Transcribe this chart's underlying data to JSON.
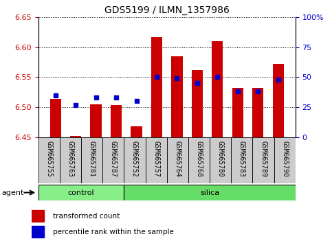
{
  "title": "GDS5199 / ILMN_1357986",
  "samples": [
    "GSM665755",
    "GSM665763",
    "GSM665781",
    "GSM665787",
    "GSM665752",
    "GSM665757",
    "GSM665764",
    "GSM665768",
    "GSM665780",
    "GSM665783",
    "GSM665789",
    "GSM665790"
  ],
  "n_control": 4,
  "n_silica": 8,
  "transformed_count": [
    6.514,
    6.452,
    6.505,
    6.504,
    6.468,
    6.617,
    6.585,
    6.562,
    6.61,
    6.532,
    6.532,
    6.572
  ],
  "percentile_rank": [
    35,
    27,
    33,
    33,
    30,
    50,
    49,
    45,
    50,
    38,
    38,
    48
  ],
  "y_min": 6.45,
  "y_max": 6.65,
  "y_ticks": [
    6.45,
    6.5,
    6.55,
    6.6,
    6.65
  ],
  "right_y_ticks": [
    0,
    25,
    50,
    75,
    100
  ],
  "right_y_labels": [
    "0",
    "25",
    "50",
    "75",
    "100%"
  ],
  "bar_color": "#cc0000",
  "dot_color": "#0000cc",
  "bar_bottom": 6.45,
  "control_color": "#88ee88",
  "silica_color": "#66dd66",
  "tick_bg_color": "#cccccc",
  "plot_bg_color": "#ffffff",
  "agent_label": "agent",
  "legend_items": [
    "transformed count",
    "percentile rank within the sample"
  ],
  "left_tick_color": "#cc0000",
  "right_tick_color": "#0000cc"
}
